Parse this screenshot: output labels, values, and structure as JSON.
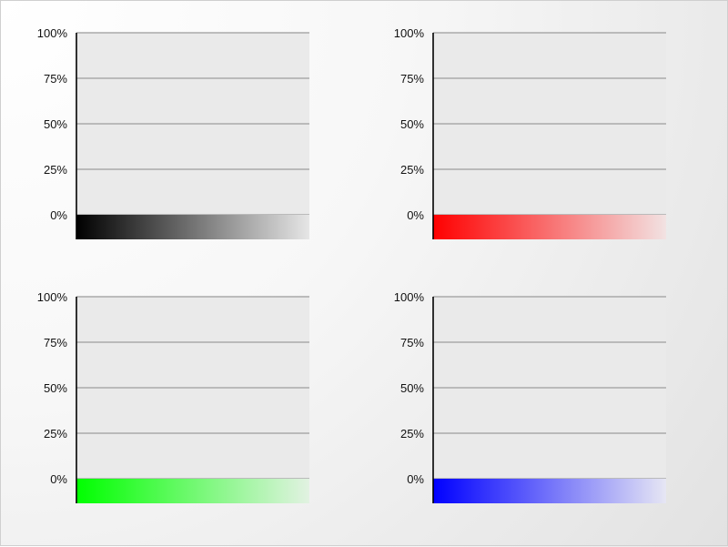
{
  "chart_data": [
    {
      "type": "area",
      "title": "",
      "xlabel": "",
      "ylabel": "",
      "ylim": [
        0,
        100
      ],
      "y_tick_labels": [
        "100%",
        "75%",
        "50%",
        "25%",
        "0%"
      ],
      "grid": true,
      "series": [
        {
          "values": [
            0
          ],
          "color": "#000000",
          "fade_to": "#e6e6e6"
        }
      ]
    },
    {
      "type": "area",
      "title": "",
      "xlabel": "",
      "ylabel": "",
      "ylim": [
        0,
        100
      ],
      "y_tick_labels": [
        "100%",
        "75%",
        "50%",
        "25%",
        "0%"
      ],
      "grid": true,
      "series": [
        {
          "values": [
            0
          ],
          "color": "#ff0000",
          "fade_to": "#f2e2e2"
        }
      ]
    },
    {
      "type": "area",
      "title": "",
      "xlabel": "",
      "ylabel": "",
      "ylim": [
        0,
        100
      ],
      "y_tick_labels": [
        "100%",
        "75%",
        "50%",
        "25%",
        "0%"
      ],
      "grid": true,
      "series": [
        {
          "values": [
            0
          ],
          "color": "#00ff00",
          "fade_to": "#e2f2e2"
        }
      ]
    },
    {
      "type": "area",
      "title": "",
      "xlabel": "",
      "ylabel": "",
      "ylim": [
        0,
        100
      ],
      "y_tick_labels": [
        "100%",
        "75%",
        "50%",
        "25%",
        "0%"
      ],
      "grid": true,
      "series": [
        {
          "values": [
            0
          ],
          "color": "#0000ff",
          "fade_to": "#e6e6f4"
        }
      ]
    }
  ],
  "style": {
    "plot_background": "#eaeaea",
    "grid_color": "#a9a9a9",
    "axis_color": "#000000"
  }
}
